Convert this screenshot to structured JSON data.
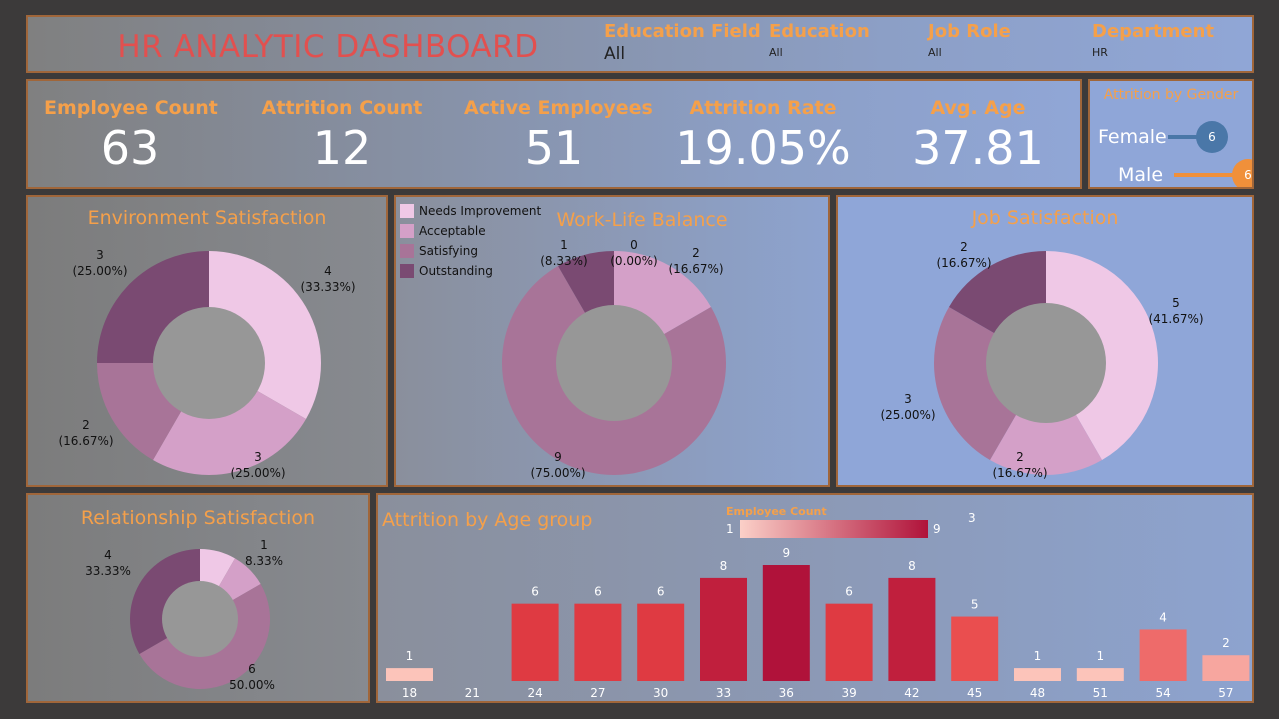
{
  "header": {
    "title": "HR ANALYTIC DASHBOARD",
    "filters": [
      {
        "label": "Education Field",
        "value": "All"
      },
      {
        "label": "Education",
        "value": "All"
      },
      {
        "label": "Job Role",
        "value": "All"
      },
      {
        "label": "Department",
        "value": "HR"
      }
    ]
  },
  "kpis": [
    {
      "label": "Employee Count",
      "value": "63"
    },
    {
      "label": "Attrition Count",
      "value": "12"
    },
    {
      "label": "Active Employees",
      "value": "51"
    },
    {
      "label": "Attrition Rate",
      "value": "19.05%"
    },
    {
      "label": "Avg. Age",
      "value": "37.81"
    }
  ],
  "gender": {
    "title": "Attrition by Gender",
    "rows": [
      {
        "label": "Female",
        "value": "6",
        "color": "#4a77a8"
      },
      {
        "label": "Male",
        "value": "6",
        "color": "#f0903a"
      }
    ]
  },
  "legend": {
    "items": [
      {
        "label": "Needs Improvement",
        "color": "#efc8e6"
      },
      {
        "label": "Acceptable",
        "color": "#d4a0c8"
      },
      {
        "label": "Satisfying",
        "color": "#a87498"
      },
      {
        "label": "Outstanding",
        "color": "#7a4a72"
      }
    ]
  },
  "chart_data": [
    {
      "type": "pie",
      "title": "Environment Satisfaction",
      "slices": [
        {
          "name": "4",
          "value": 4,
          "label": "4",
          "pct": "(33.33%)",
          "color": "#efc8e6"
        },
        {
          "name": "3",
          "value": 3,
          "label": "3",
          "pct": "(25.00%)",
          "color": "#d4a0c8"
        },
        {
          "name": "2",
          "value": 2,
          "label": "2",
          "pct": "(16.67%)",
          "color": "#a87498"
        },
        {
          "name": "3",
          "value": 3,
          "label": "3",
          "pct": "(25.00%)",
          "color": "#7a4a72"
        }
      ]
    },
    {
      "type": "pie",
      "title": "Work-Life Balance",
      "slices": [
        {
          "name": "0",
          "value": 0,
          "label": "0",
          "pct": "(0.00%)",
          "color": "#efc8e6"
        },
        {
          "name": "2",
          "value": 2,
          "label": "2",
          "pct": "(16.67%)",
          "color": "#d4a0c8"
        },
        {
          "name": "9",
          "value": 9,
          "label": "9",
          "pct": "(75.00%)",
          "color": "#a87498"
        },
        {
          "name": "1",
          "value": 1,
          "label": "1",
          "pct": "(8.33%)",
          "color": "#7a4a72"
        }
      ]
    },
    {
      "type": "pie",
      "title": "Job Satisfaction",
      "slices": [
        {
          "name": "5",
          "value": 5,
          "label": "5",
          "pct": "(41.67%)",
          "color": "#efc8e6"
        },
        {
          "name": "2",
          "value": 2,
          "label": "2",
          "pct": "(16.67%)",
          "color": "#d4a0c8"
        },
        {
          "name": "3",
          "value": 3,
          "label": "3",
          "pct": "(25.00%)",
          "color": "#a87498"
        },
        {
          "name": "2",
          "value": 2,
          "label": "2",
          "pct": "(16.67%)",
          "color": "#7a4a72"
        }
      ]
    },
    {
      "type": "pie",
      "title": "Relationship Satisfaction",
      "slices": [
        {
          "name": "1",
          "value": 1,
          "label": "1",
          "pct": "8.33%",
          "color": "#efc8e6"
        },
        {
          "name": "1",
          "value": 1,
          "label": "",
          "pct": "",
          "color": "#d4a0c8"
        },
        {
          "name": "6",
          "value": 6,
          "label": "6",
          "pct": "50.00%",
          "color": "#a87498"
        },
        {
          "name": "4",
          "value": 4,
          "label": "4",
          "pct": "33.33%",
          "color": "#7a4a72"
        }
      ]
    },
    {
      "type": "bar",
      "title": "Attrition by Age group",
      "legend_title": "Employee Count",
      "legend_min": "1",
      "legend_max": "9",
      "extra_label": "3",
      "categories": [
        "18",
        "21",
        "24",
        "27",
        "30",
        "33",
        "36",
        "39",
        "42",
        "45",
        "48",
        "51",
        "54",
        "57"
      ],
      "values": [
        1,
        0,
        6,
        6,
        6,
        8,
        9,
        6,
        8,
        5,
        1,
        1,
        4,
        2
      ],
      "ylim": [
        0,
        9
      ]
    }
  ]
}
